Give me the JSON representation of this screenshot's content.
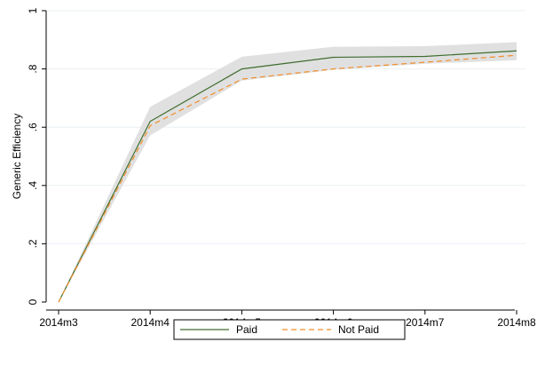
{
  "chart_data": {
    "type": "line",
    "xlabel": "",
    "ylabel": "Generic Efficiency",
    "categories": [
      "2014m3",
      "2014m4",
      "2014m5",
      "2014m6",
      "2014m7",
      "2014m8"
    ],
    "ylim": [
      0,
      1
    ],
    "yticks": [
      {
        "value": 0,
        "label": "0"
      },
      {
        "value": 0.2,
        "label": ".2"
      },
      {
        "value": 0.4,
        "label": ".4"
      },
      {
        "value": 0.6,
        "label": ".6"
      },
      {
        "value": 0.8,
        "label": ".8"
      },
      {
        "value": 1,
        "label": "1"
      }
    ],
    "grid": "horizontal",
    "legend_position": "bottom",
    "confidence_band": {
      "lower": [
        0,
        0.572,
        0.76,
        0.797,
        0.818,
        0.83
      ],
      "upper": [
        0,
        0.67,
        0.842,
        0.876,
        0.878,
        0.892
      ],
      "color": "#e0e0e0"
    },
    "series": [
      {
        "name": "Paid",
        "values": [
          0,
          0.62,
          0.8,
          0.84,
          0.843,
          0.862
        ],
        "color": "#3f6e2f",
        "dash": "solid"
      },
      {
        "name": "Not Paid",
        "values": [
          0,
          0.605,
          0.765,
          0.8,
          0.823,
          0.847
        ],
        "color": "#f28e2b",
        "dash": "dashed"
      }
    ]
  }
}
